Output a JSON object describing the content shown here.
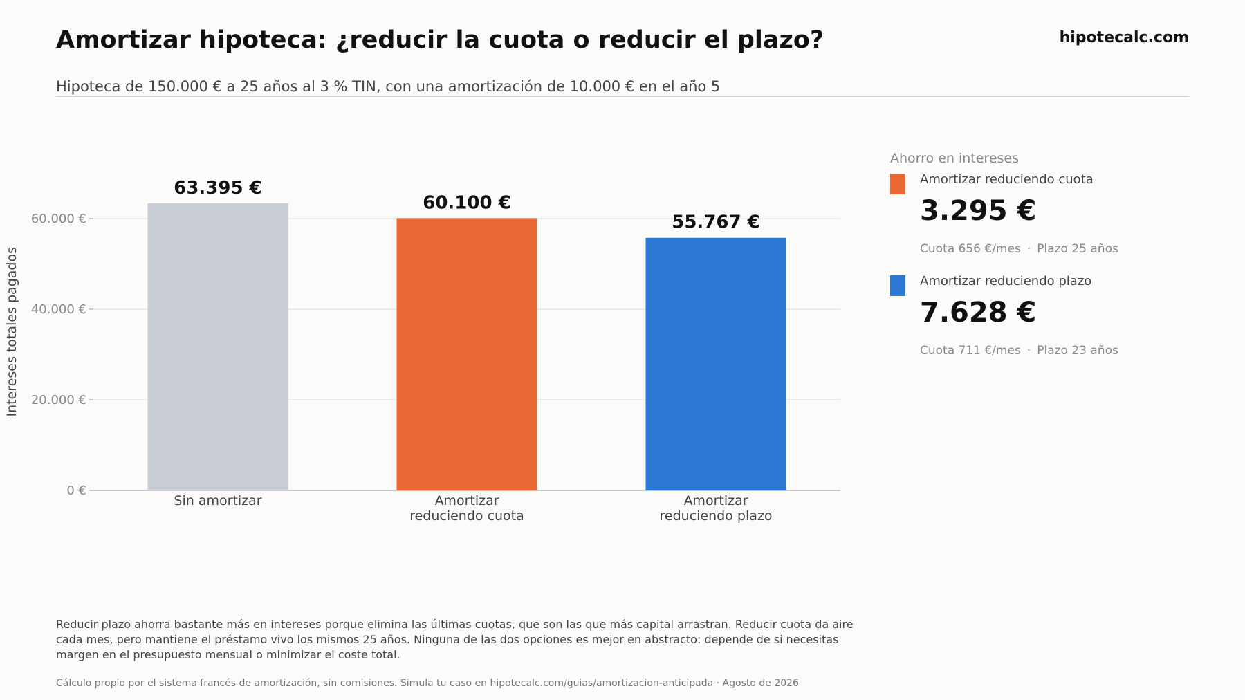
{
  "header": {
    "title": "Amortizar hipoteca: ¿reducir la cuota o reducir el plazo?",
    "subtitle": "Hipoteca de 150.000 € a 25 años al 3 % TIN, con una amortización de 10.000 € en el año 5",
    "brand": "hipotecalc.com"
  },
  "chart_data": {
    "type": "bar",
    "categories": [
      "Sin amortizar",
      "Amortizar\nreduciendo cuota",
      "Amortizar\nreduciendo plazo"
    ],
    "values": [
      63395,
      60100,
      55767
    ],
    "value_labels": [
      "63.395 €",
      "60.100 €",
      "55.767 €"
    ],
    "colors": [
      "#c8ccd4",
      "#e96834",
      "#2b78d4"
    ],
    "ylabel": "Intereses totales pagados",
    "ylim": [
      0,
      73000
    ],
    "yticks": [
      0,
      20000,
      40000,
      60000
    ],
    "ytick_labels": [
      "0 €",
      "20.000 €",
      "40.000 €",
      "60.000 €"
    ],
    "grid": true
  },
  "legend": {
    "title": "Ahorro en intereses",
    "items": [
      {
        "label": "Amortizar reduciendo cuota",
        "value": "3.295 €",
        "cuota": "Cuota 656 €/mes",
        "plazo": "Plazo 25 años",
        "color": "#e96834"
      },
      {
        "label": "Amortizar reduciendo plazo",
        "value": "7.628 €",
        "cuota": "Cuota 711 €/mes",
        "plazo": "Plazo 23 años",
        "color": "#2b78d4"
      }
    ],
    "separator": "·"
  },
  "footnote": "Reducir plazo ahorra bastante más en intereses porque elimina las últimas cuotas, que son las que más capital arrastran. Reducir cuota da aire cada mes, pero mantiene el préstamo vivo los mismos 25 años. Ninguna de las dos opciones es mejor en abstracto: depende de si necesitas margen en el presupuesto mensual o minimizar el coste total.",
  "source": "Cálculo propio por el sistema francés de amortización, sin comisiones. Simula tu caso en hipotecalc.com/guias/amortizacion-anticipada · Agosto de 2026"
}
